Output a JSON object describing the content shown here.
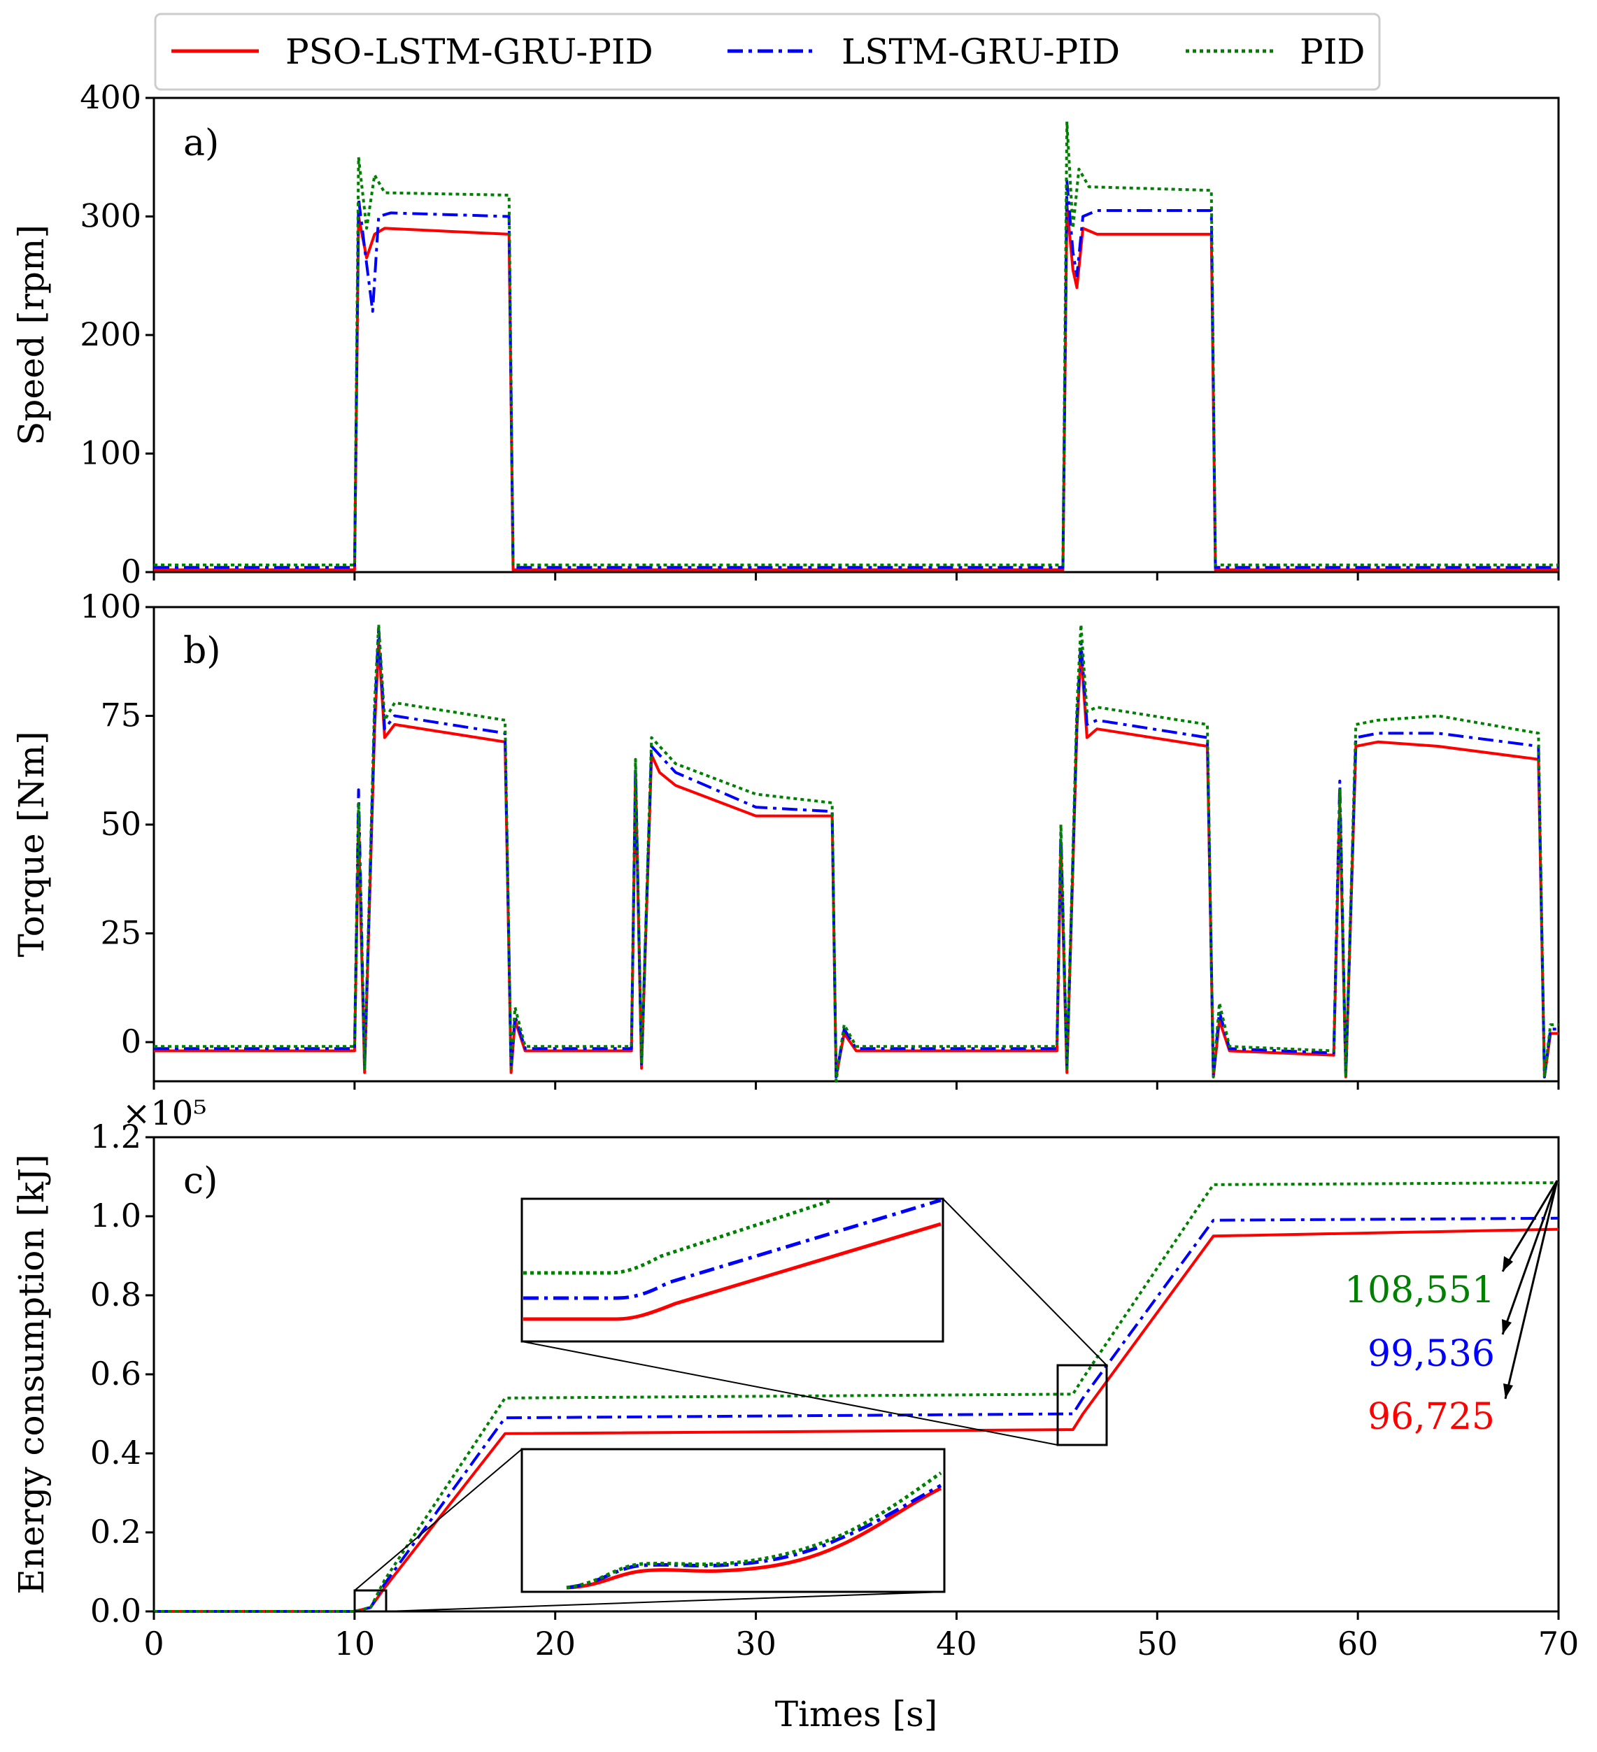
{
  "colors": {
    "pso": "#ff0000",
    "lstm": "#0000ff",
    "pid": "#008000"
  },
  "chart_data": {
    "type": "line",
    "xlabel": "Times [s]",
    "xlim": [
      0,
      70
    ],
    "xticks": [
      "0",
      "10",
      "20",
      "30",
      "40",
      "50",
      "60",
      "70"
    ],
    "legend": {
      "placement": "top-center",
      "entries": [
        "PSO-LSTM-GRU-PID",
        "LSTM-GRU-PID",
        "PID"
      ]
    },
    "panels": [
      {
        "label": "a)",
        "ylabel": "Speed [rpm]",
        "ylim": [
          0,
          400
        ],
        "yticks": [
          "0",
          "100",
          "200",
          "300",
          "400"
        ],
        "series": [
          {
            "name": "PSO-LSTM-GRU-PID",
            "points": [
              [
                0,
                2
              ],
              [
                10,
                2
              ],
              [
                10.2,
                300
              ],
              [
                10.6,
                265
              ],
              [
                11,
                285
              ],
              [
                11.5,
                290
              ],
              [
                17.7,
                285
              ],
              [
                17.9,
                2
              ],
              [
                45.3,
                2
              ],
              [
                45.5,
                310
              ],
              [
                45.8,
                255
              ],
              [
                46.0,
                240
              ],
              [
                46.3,
                290
              ],
              [
                47,
                285
              ],
              [
                52.7,
                285
              ],
              [
                52.9,
                2
              ],
              [
                70,
                2
              ]
            ]
          },
          {
            "name": "LSTM-GRU-PID",
            "points": [
              [
                0,
                4
              ],
              [
                10,
                4
              ],
              [
                10.2,
                315
              ],
              [
                10.6,
                260
              ],
              [
                10.9,
                220
              ],
              [
                11.2,
                300
              ],
              [
                11.8,
                303
              ],
              [
                17.7,
                300
              ],
              [
                17.9,
                4
              ],
              [
                45.3,
                4
              ],
              [
                45.5,
                330
              ],
              [
                45.8,
                270
              ],
              [
                46.0,
                250
              ],
              [
                46.3,
                300
              ],
              [
                47,
                305
              ],
              [
                52.7,
                305
              ],
              [
                52.9,
                4
              ],
              [
                70,
                4
              ]
            ]
          },
          {
            "name": "PID",
            "points": [
              [
                0,
                6
              ],
              [
                10,
                6
              ],
              [
                10.2,
                350
              ],
              [
                10.6,
                290
              ],
              [
                11,
                335
              ],
              [
                11.5,
                320
              ],
              [
                17.7,
                318
              ],
              [
                17.9,
                6
              ],
              [
                45.3,
                6
              ],
              [
                45.5,
                380
              ],
              [
                45.8,
                290
              ],
              [
                46.1,
                340
              ],
              [
                46.6,
                325
              ],
              [
                52.7,
                322
              ],
              [
                52.9,
                6
              ],
              [
                70,
                6
              ]
            ]
          }
        ]
      },
      {
        "label": "b)",
        "ylabel": "Torque [Nm]",
        "ylim": [
          -9,
          100
        ],
        "yticks": [
          "0",
          "25",
          "50",
          "75",
          "100"
        ],
        "series": [
          {
            "name": "PSO-LSTM-GRU-PID",
            "points": [
              [
                0,
                -2
              ],
              [
                10,
                -2
              ],
              [
                10.2,
                50
              ],
              [
                10.5,
                -7
              ],
              [
                11,
                72
              ],
              [
                11.2,
                92
              ],
              [
                11.5,
                70
              ],
              [
                12,
                73
              ],
              [
                17.5,
                69
              ],
              [
                17.8,
                -7
              ],
              [
                18,
                5
              ],
              [
                18.5,
                -2
              ],
              [
                23.8,
                -2
              ],
              [
                24,
                62
              ],
              [
                24.3,
                -6
              ],
              [
                24.8,
                66
              ],
              [
                25.2,
                62
              ],
              [
                26,
                59
              ],
              [
                30,
                52
              ],
              [
                33.8,
                52
              ],
              [
                34,
                -8
              ],
              [
                34.4,
                2
              ],
              [
                35,
                -2
              ],
              [
                45,
                -2
              ],
              [
                45.2,
                45
              ],
              [
                45.5,
                -7
              ],
              [
                46,
                72
              ],
              [
                46.2,
                90
              ],
              [
                46.5,
                70
              ],
              [
                47,
                72
              ],
              [
                52.5,
                68
              ],
              [
                52.8,
                -8
              ],
              [
                53.1,
                5
              ],
              [
                53.6,
                -2
              ],
              [
                58.8,
                -3
              ],
              [
                59.1,
                55
              ],
              [
                59.4,
                -8
              ],
              [
                59.9,
                68
              ],
              [
                61,
                69
              ],
              [
                64,
                68
              ],
              [
                69,
                65
              ],
              [
                69.3,
                -8
              ],
              [
                69.6,
                2
              ],
              [
                70,
                2
              ]
            ]
          },
          {
            "name": "LSTM-GRU-PID",
            "points": [
              [
                0,
                -1.5
              ],
              [
                10,
                -1.5
              ],
              [
                10.2,
                58
              ],
              [
                10.5,
                -6
              ],
              [
                11,
                75
              ],
              [
                11.2,
                95
              ],
              [
                11.5,
                72
              ],
              [
                12,
                75
              ],
              [
                17.5,
                71
              ],
              [
                17.8,
                -6
              ],
              [
                18,
                6
              ],
              [
                18.5,
                -1.5
              ],
              [
                23.8,
                -1.5
              ],
              [
                24,
                63
              ],
              [
                24.3,
                -5
              ],
              [
                24.8,
                68
              ],
              [
                25.2,
                66
              ],
              [
                26,
                62
              ],
              [
                30,
                54
              ],
              [
                33.8,
                53
              ],
              [
                34,
                -8
              ],
              [
                34.4,
                3
              ],
              [
                35,
                -1.5
              ],
              [
                45,
                -1.5
              ],
              [
                45.2,
                48
              ],
              [
                45.5,
                -6
              ],
              [
                46,
                74
              ],
              [
                46.2,
                92
              ],
              [
                46.5,
                73
              ],
              [
                47,
                74
              ],
              [
                52.5,
                70
              ],
              [
                52.8,
                -8
              ],
              [
                53.1,
                7
              ],
              [
                53.6,
                -1.5
              ],
              [
                58.8,
                -2.5
              ],
              [
                59.1,
                60
              ],
              [
                59.4,
                -8
              ],
              [
                59.9,
                70
              ],
              [
                61,
                71
              ],
              [
                64,
                71
              ],
              [
                69,
                68
              ],
              [
                69.3,
                -8
              ],
              [
                69.6,
                3
              ],
              [
                70,
                3
              ]
            ]
          },
          {
            "name": "PID",
            "points": [
              [
                0,
                -1
              ],
              [
                10,
                -1
              ],
              [
                10.2,
                55
              ],
              [
                10.5,
                -6
              ],
              [
                11,
                78
              ],
              [
                11.2,
                96
              ],
              [
                11.5,
                74
              ],
              [
                12,
                78
              ],
              [
                17.5,
                74
              ],
              [
                17.8,
                -6
              ],
              [
                18,
                8
              ],
              [
                18.5,
                -1
              ],
              [
                23.8,
                -1
              ],
              [
                24,
                65
              ],
              [
                24.3,
                -5
              ],
              [
                24.8,
                70
              ],
              [
                25.2,
                68
              ],
              [
                26,
                64
              ],
              [
                30,
                57
              ],
              [
                33.8,
                55
              ],
              [
                34,
                -9
              ],
              [
                34.4,
                4
              ],
              [
                35,
                -1
              ],
              [
                45,
                -1
              ],
              [
                45.2,
                50
              ],
              [
                45.5,
                -6
              ],
              [
                46,
                77
              ],
              [
                46.2,
                96
              ],
              [
                46.5,
                76
              ],
              [
                47,
                77
              ],
              [
                52.5,
                73
              ],
              [
                52.8,
                -8
              ],
              [
                53.1,
                9
              ],
              [
                53.6,
                -1
              ],
              [
                58.8,
                -2
              ],
              [
                59.1,
                58
              ],
              [
                59.4,
                -8
              ],
              [
                59.9,
                73
              ],
              [
                61,
                74
              ],
              [
                64,
                75
              ],
              [
                69,
                71
              ],
              [
                69.3,
                -8
              ],
              [
                69.6,
                4
              ],
              [
                70,
                4
              ]
            ]
          }
        ]
      },
      {
        "label": "c)",
        "ylabel": "Energy consumption [kJ]",
        "multiplier": "×10⁵",
        "ylim": [
          0,
          1.2
        ],
        "yticks": [
          "0.0",
          "0.2",
          "0.4",
          "0.6",
          "0.8",
          "1.0",
          "1.2"
        ],
        "series": [
          {
            "name": "PSO-LSTM-GRU-PID",
            "points": [
              [
                0,
                0
              ],
              [
                10,
                0
              ],
              [
                10.8,
                0.01
              ],
              [
                11.5,
                0.06
              ],
              [
                17.5,
                0.45
              ],
              [
                45.8,
                0.46
              ],
              [
                46.3,
                0.5
              ],
              [
                52.8,
                0.95
              ],
              [
                70,
                0.967
              ]
            ]
          },
          {
            "name": "LSTM-GRU-PID",
            "points": [
              [
                0,
                0
              ],
              [
                10,
                0
              ],
              [
                10.8,
                0.01
              ],
              [
                11.5,
                0.07
              ],
              [
                17.5,
                0.49
              ],
              [
                45.8,
                0.5
              ],
              [
                46.3,
                0.54
              ],
              [
                52.8,
                0.99
              ],
              [
                70,
                0.995
              ]
            ]
          },
          {
            "name": "PID",
            "points": [
              [
                0,
                0
              ],
              [
                10,
                0
              ],
              [
                10.8,
                0.01
              ],
              [
                11.5,
                0.08
              ],
              [
                17.5,
                0.54
              ],
              [
                45.8,
                0.55
              ],
              [
                46.3,
                0.59
              ],
              [
                52.8,
                1.08
              ],
              [
                70,
                1.085
              ]
            ]
          }
        ],
        "annotations": [
          "108,551",
          "99,536",
          "96,725"
        ]
      }
    ]
  }
}
